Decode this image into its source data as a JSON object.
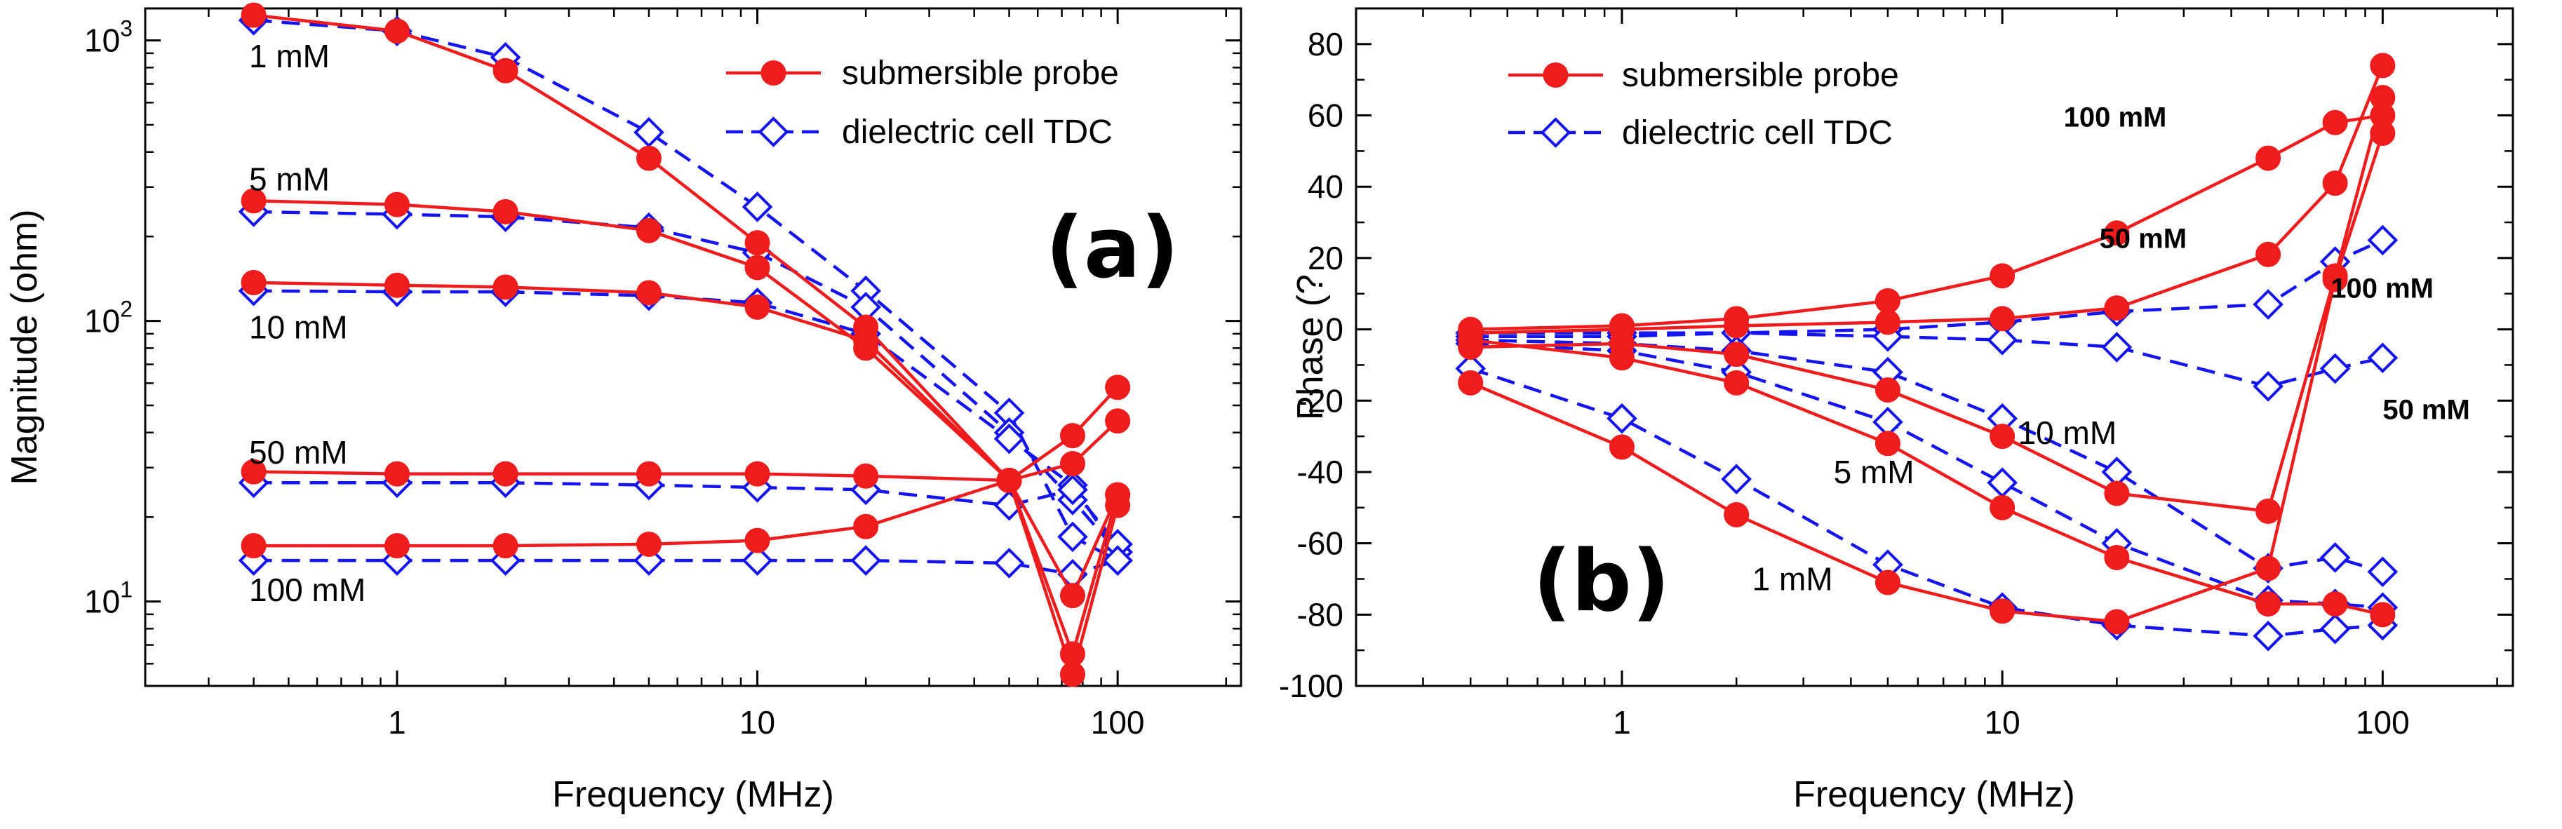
{
  "chart_data": [
    {
      "type": "line",
      "panel": "(a)",
      "x_scale": "log",
      "y_scale": "log",
      "xlabel": "Frequency (MHz)",
      "ylabel": "Magnitude (ohm)",
      "xlim": [
        0.2,
        220
      ],
      "ylim": [
        5,
        1300
      ],
      "x_ticks": [
        1,
        10,
        100
      ],
      "x_tick_labels": [
        "1",
        "10",
        "100"
      ],
      "y_ticks": [
        10,
        100,
        1000
      ],
      "y_tick_labels": [
        {
          "base": "10",
          "exp": "1"
        },
        {
          "base": "10",
          "exp": "2"
        },
        {
          "base": "10",
          "exp": "3"
        }
      ],
      "legend": [
        {
          "label": "submersible probe",
          "style": "probe"
        },
        {
          "label": "dielectric cell TDC",
          "style": "tdc"
        }
      ],
      "legend_position": "top-right",
      "x": [
        0.4,
        1,
        2,
        5,
        10,
        20,
        50,
        75,
        100
      ],
      "series": [
        {
          "name": "1 mM submersible probe",
          "style": "probe",
          "values": [
            1230,
            1080,
            780,
            380,
            190,
            95,
            27,
            5.5,
            22
          ]
        },
        {
          "name": "1 mM dielectric cell TDC",
          "style": "tdc",
          "values": [
            1180,
            1080,
            870,
            470,
            255,
            128,
            47,
            17,
            14
          ]
        },
        {
          "name": "5 mM submersible probe",
          "style": "probe",
          "values": [
            268,
            260,
            245,
            210,
            155,
            80,
            27,
            6.5,
            24
          ]
        },
        {
          "name": "5 mM dielectric cell TDC",
          "style": "tdc",
          "values": [
            245,
            240,
            235,
            215,
            175,
            112,
            40,
            23,
            15
          ]
        },
        {
          "name": "10 mM submersible probe",
          "style": "probe",
          "values": [
            137,
            134,
            132,
            126,
            112,
            85,
            27,
            10.5,
            24
          ]
        },
        {
          "name": "10 mM dielectric cell TDC",
          "style": "tdc",
          "values": [
            128,
            127,
            127,
            123,
            116,
            90,
            38,
            26,
            15
          ]
        },
        {
          "name": "50 mM submersible probe",
          "style": "probe",
          "values": [
            29,
            28.5,
            28.5,
            28.5,
            28.5,
            28,
            27,
            31,
            44
          ]
        },
        {
          "name": "50 mM dielectric cell TDC",
          "style": "tdc",
          "values": [
            26.5,
            26.5,
            26.5,
            26,
            25.5,
            25,
            22,
            25,
            16
          ]
        },
        {
          "name": "100 mM submersible probe",
          "style": "probe",
          "values": [
            15.8,
            15.8,
            15.8,
            16,
            16.5,
            18.5,
            27,
            39,
            58
          ]
        },
        {
          "name": "100 mM dielectric cell TDC",
          "style": "tdc",
          "values": [
            14,
            14,
            14,
            14,
            14,
            14,
            13.7,
            12.5,
            14
          ]
        }
      ],
      "annotations": [
        {
          "text": "1 mM",
          "x": 0.4,
          "y": 880
        },
        {
          "text": "5 mM",
          "x": 0.4,
          "y": 320
        },
        {
          "text": "10 mM",
          "x": 0.4,
          "y": 95
        },
        {
          "text": "50 mM",
          "x": 0.4,
          "y": 34
        },
        {
          "text": "100 mM",
          "x": 0.4,
          "y": 11
        }
      ]
    },
    {
      "type": "line",
      "panel": "(b)",
      "x_scale": "log",
      "y_scale": "linear",
      "xlabel": "Frequency (MHz)",
      "ylabel": "Phase (?",
      "xlim": [
        0.2,
        220
      ],
      "ylim": [
        -100,
        90
      ],
      "x_ticks": [
        1,
        10,
        100
      ],
      "x_tick_labels": [
        "1",
        "10",
        "100"
      ],
      "y_ticks": [
        -100,
        -80,
        -60,
        -40,
        -20,
        0,
        20,
        40,
        60,
        80
      ],
      "y_tick_labels": [
        "-100",
        "-80",
        "-60",
        "-40",
        "-20",
        "0",
        "20",
        "40",
        "60",
        "80"
      ],
      "legend": [
        {
          "label": "submersible probe",
          "style": "probe"
        },
        {
          "label": "dielectric cell TDC",
          "style": "tdc"
        }
      ],
      "legend_position": "top-left",
      "x": [
        0.4,
        1,
        2,
        5,
        10,
        20,
        50,
        75,
        100
      ],
      "series": [
        {
          "name": "100 mM submersible probe",
          "style": "probe",
          "values": [
            0,
            1,
            3,
            8,
            15,
            27,
            48,
            58,
            60
          ]
        },
        {
          "name": "50 mM submersible probe",
          "style": "probe",
          "values": [
            -1,
            0,
            1,
            2,
            3,
            6,
            21,
            41,
            74
          ]
        },
        {
          "name": "10 mM submersible probe",
          "style": "probe",
          "values": [
            -3,
            -8,
            -15,
            -32,
            -50,
            -64,
            -77,
            -77,
            -80
          ]
        },
        {
          "name": "5 mM submersible probe",
          "style": "probe",
          "values": [
            -5,
            -4,
            -7,
            -17,
            -30,
            -46,
            -51,
            15,
            65
          ]
        },
        {
          "name": "1 mM submersible probe",
          "style": "probe",
          "values": [
            -15,
            -33,
            -52,
            -71,
            -79,
            -82,
            -67,
            14,
            55
          ]
        },
        {
          "name": "100 mM dielectric cell TDC",
          "style": "tdc",
          "values": [
            -1,
            -1,
            -1,
            0,
            2,
            5,
            7,
            19,
            25
          ]
        },
        {
          "name": "50 mM dielectric cell TDC",
          "style": "tdc",
          "values": [
            -2,
            -2,
            -1,
            -2,
            -3,
            -5,
            -16,
            -11,
            -8
          ]
        },
        {
          "name": "10 mM dielectric cell TDC",
          "style": "tdc",
          "values": [
            -3,
            -4,
            -6,
            -12,
            -25,
            -40,
            -67,
            -64,
            -68
          ]
        },
        {
          "name": "5 mM dielectric cell TDC",
          "style": "tdc",
          "values": [
            -4,
            -6,
            -12,
            -26,
            -43,
            -60,
            -76,
            -77,
            -78
          ]
        },
        {
          "name": "1 mM dielectric cell TDC",
          "style": "tdc",
          "values": [
            -11,
            -25,
            -42,
            -66,
            -78,
            -83,
            -86,
            -84,
            -83
          ]
        }
      ],
      "annotations": [
        {
          "text": "100 mM",
          "x": 14.5,
          "y": 60,
          "color": "#ee1c1c",
          "bold": true
        },
        {
          "text": "50 mM",
          "x": 18,
          "y": 26,
          "color": "#ee1c1c",
          "bold": true
        },
        {
          "text": "100 mM",
          "x": 73,
          "y": 12,
          "color": "#1414ee",
          "bold": true
        },
        {
          "text": "50 mM",
          "x": 100,
          "y": -22,
          "color": "#1414ee",
          "bold": true
        },
        {
          "text": "10 mM",
          "x": 11,
          "y": -29,
          "color": "#000000",
          "bold": false
        },
        {
          "text": "5 mM",
          "x": 3.6,
          "y": -40,
          "color": "#000000",
          "bold": false
        },
        {
          "text": "1 mM",
          "x": 2.2,
          "y": -70,
          "color": "#000000",
          "bold": false
        }
      ]
    }
  ],
  "colors": {
    "probe": "#ee1c1c",
    "tdc": "#1414ee",
    "axis": "#000000"
  }
}
